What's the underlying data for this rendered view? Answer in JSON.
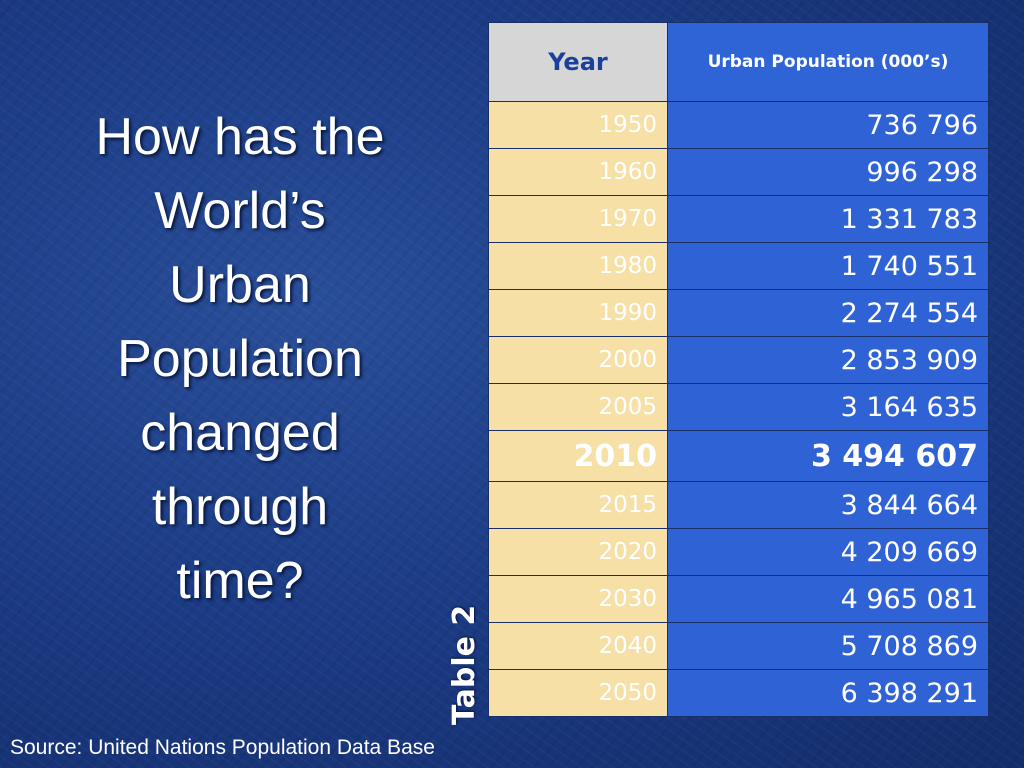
{
  "slide": {
    "title_lines": [
      "How has the",
      "World’s",
      "Urban",
      "Population",
      "changed",
      "through",
      "time?"
    ],
    "table_label": "Table 2",
    "source": "Source: United Nations Population Data Base"
  },
  "table": {
    "headers": {
      "year": "Year",
      "population": "Urban Population (000’s)"
    },
    "rows": [
      {
        "year": "1950",
        "population": "736 796"
      },
      {
        "year": "1960",
        "population": "996 298"
      },
      {
        "year": "1970",
        "population": "1 331 783"
      },
      {
        "year": "1980",
        "population": "1 740 551"
      },
      {
        "year": "1990",
        "population": "2 274 554"
      },
      {
        "year": "2000",
        "population": "2 853 909"
      },
      {
        "year": "2005",
        "population": "3 164 635"
      },
      {
        "year": "2010",
        "population": "3 494 607",
        "highlight": true
      },
      {
        "year": "2015",
        "population": "3 844 664"
      },
      {
        "year": "2020",
        "population": "4 209 669"
      },
      {
        "year": "2030",
        "population": "4 965 081"
      },
      {
        "year": "2040",
        "population": "5 708 869"
      },
      {
        "year": "2050",
        "population": "6 398 291"
      }
    ]
  },
  "colors": {
    "background": "#1c3c86",
    "year_cell": "#f6e0a6",
    "population_cell": "#2f62d4",
    "year_header": "#d6d6d6",
    "year_header_text": "#1b3f9c"
  }
}
